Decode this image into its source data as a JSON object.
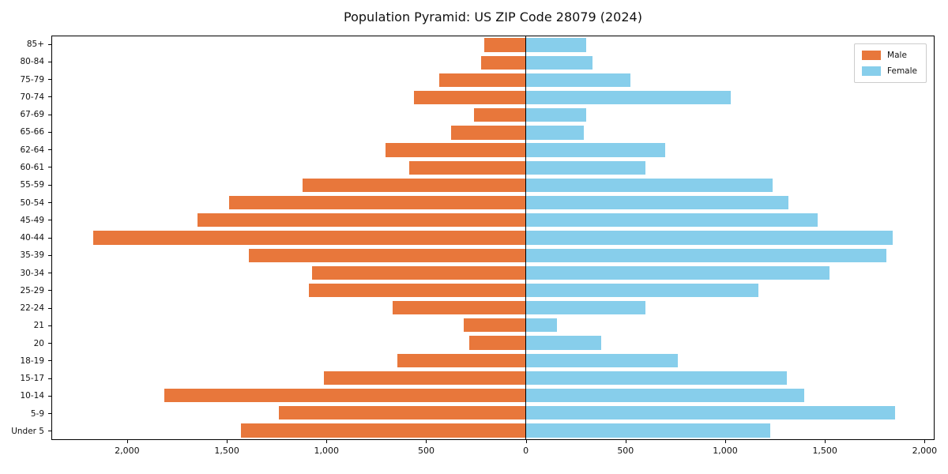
{
  "title": "Population Pyramid: US ZIP Code 28079 (2024)",
  "legend": {
    "male_label": "Male",
    "female_label": "Female",
    "position": "upper right"
  },
  "colors": {
    "male": "#E8773B",
    "female": "#87CEEB",
    "axis": "#000000",
    "legend_border": "#CCCCCC",
    "background": "#FFFFFF"
  },
  "chart_data": {
    "type": "bar",
    "subtype": "population-pyramid-horizontal",
    "title": "Population Pyramid: US ZIP Code 28079 (2024)",
    "categories_top_to_bottom": [
      "85+",
      "80-84",
      "75-79",
      "70-74",
      "67-69",
      "65-66",
      "62-64",
      "60-61",
      "55-59",
      "50-54",
      "45-49",
      "40-44",
      "35-39",
      "30-34",
      "25-29",
      "22-24",
      "21",
      "20",
      "18-19",
      "15-17",
      "10-14",
      "5-9",
      "Under 5"
    ],
    "series": [
      {
        "name": "Male",
        "side": "left",
        "color": "#E8773B",
        "values": [
          210,
          225,
          435,
          560,
          260,
          375,
          705,
          585,
          1120,
          1490,
          1650,
          2175,
          1390,
          1075,
          1090,
          670,
          310,
          285,
          645,
          1015,
          1815,
          1240,
          1430
        ]
      },
      {
        "name": "Female",
        "side": "right",
        "color": "#87CEEB",
        "values": [
          305,
          335,
          525,
          1030,
          305,
          290,
          700,
          600,
          1240,
          1320,
          1465,
          1845,
          1810,
          1525,
          1170,
          600,
          155,
          380,
          765,
          1310,
          1400,
          1855,
          1230
        ]
      }
    ],
    "x_axis": {
      "tick_values": [
        -2000,
        -1500,
        -1000,
        -500,
        0,
        500,
        1000,
        1500,
        2000
      ],
      "tick_labels": [
        "2,000",
        "1,500",
        "1,000",
        "500",
        "0",
        "500",
        "1,000",
        "1,500",
        "2,000"
      ],
      "xlim": [
        -2380,
        2050
      ]
    },
    "grid": false,
    "center_line_at_zero": true,
    "legend_position": "upper right"
  }
}
